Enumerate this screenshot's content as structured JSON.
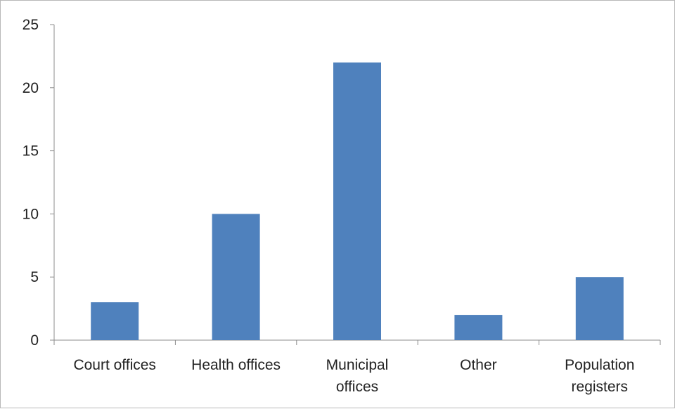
{
  "chart_data": {
    "type": "bar",
    "title": "",
    "xlabel": "",
    "ylabel": "",
    "categories": [
      "Court offices",
      "Health offices",
      "Municipal offices",
      "Other",
      "Population registers"
    ],
    "category_lines": [
      [
        "Court offices"
      ],
      [
        "Health offices"
      ],
      [
        "Municipal",
        "offices"
      ],
      [
        "Other"
      ],
      [
        "Population",
        "registers"
      ]
    ],
    "values": [
      3,
      10,
      22,
      2,
      5
    ],
    "ylim": [
      0,
      25
    ],
    "yticks": [
      "0",
      "5",
      "10",
      "15",
      "20",
      "25"
    ],
    "grid": false,
    "legend": "none",
    "colors": {
      "bar": "#4f81bd",
      "axis": "#8c8c8c"
    }
  }
}
